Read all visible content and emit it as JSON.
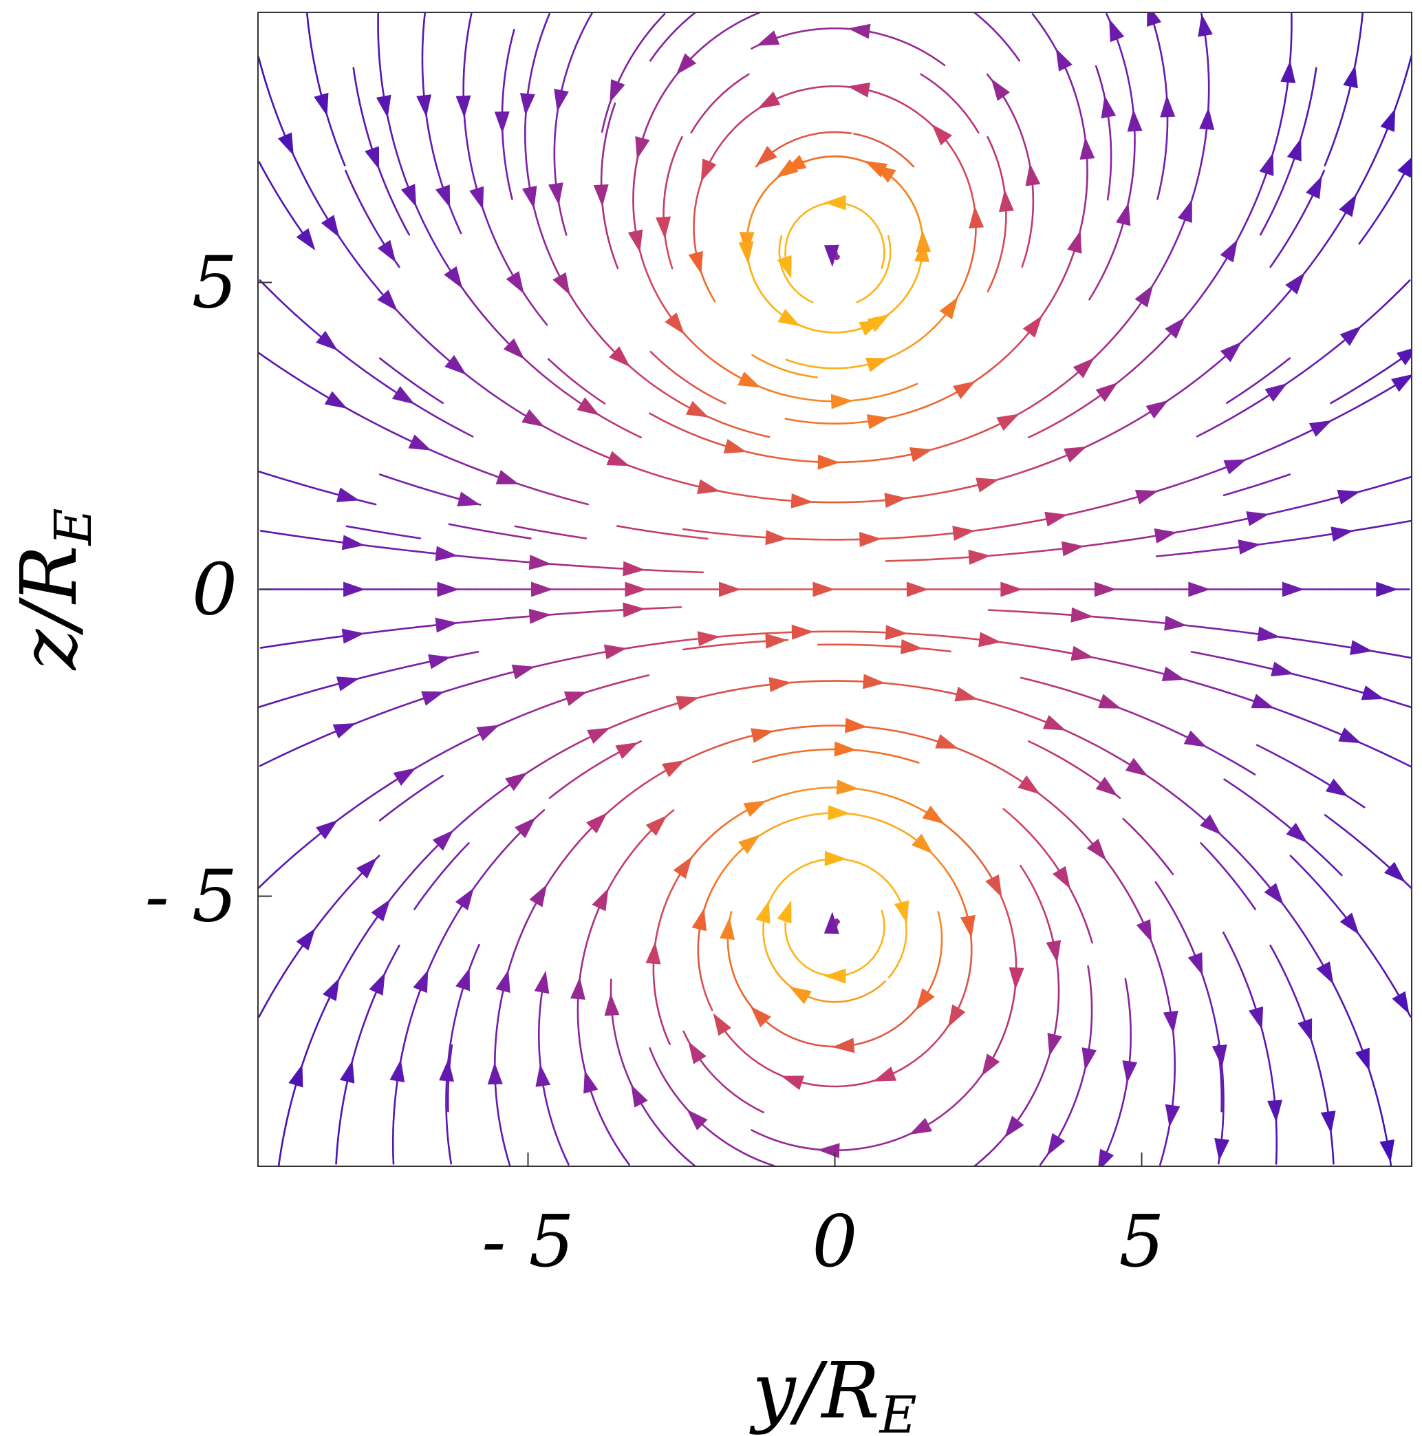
{
  "chart_data": {
    "type": "streamplot",
    "title": "",
    "xlabel": {
      "var": "y",
      "sep": "/",
      "base": "R",
      "sub": "E"
    },
    "ylabel": {
      "var": "z",
      "sep": "/",
      "base": "R",
      "sub": "E"
    },
    "xlim": [
      -9.4,
      9.4
    ],
    "ylim": [
      -9.4,
      9.4
    ],
    "xticks": [
      {
        "value": -5,
        "label": "- 5"
      },
      {
        "value": 0,
        "label": "0"
      },
      {
        "value": 5,
        "label": "5"
      }
    ],
    "yticks": [
      {
        "value": 5,
        "label": "5"
      },
      {
        "value": 0,
        "label": "0"
      },
      {
        "value": -5,
        "label": "- 5"
      }
    ],
    "vortex_centers": [
      {
        "y": 0,
        "z": 5.4,
        "sense": "counterclockwise"
      },
      {
        "y": 0,
        "z": -5.4,
        "sense": "clockwise"
      }
    ],
    "flow_direction": "+y through central sheet z≈0, return flow around vortices",
    "colormap": {
      "low": "#3d10b8",
      "mid_low": "#7a1fa8",
      "mid": "#c43a6e",
      "mid_high": "#f26a2a",
      "high": "#fdb418"
    },
    "grid": false,
    "legend": "none"
  }
}
